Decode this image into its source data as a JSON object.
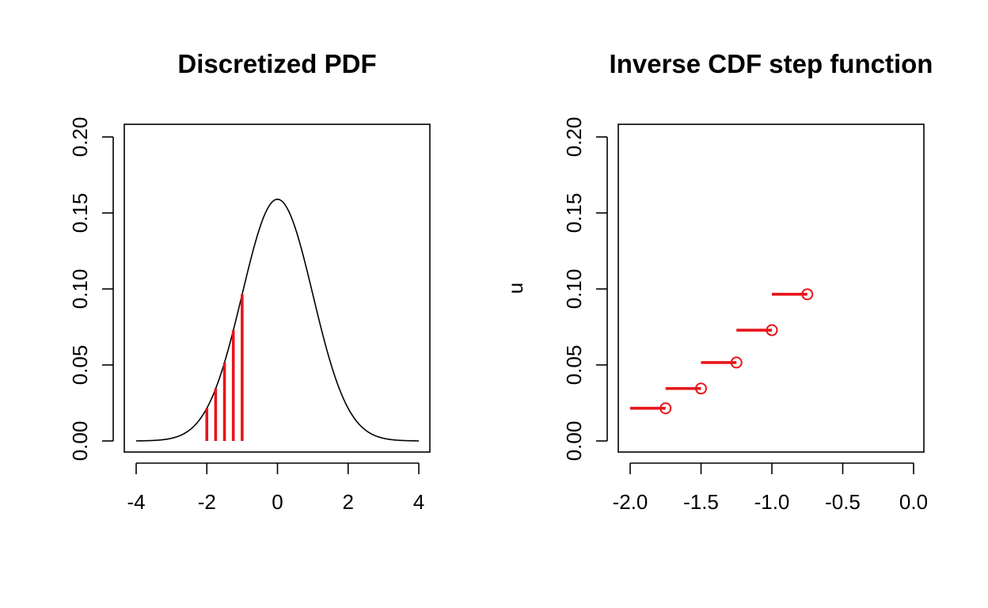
{
  "colors": {
    "accent": "#e8141a",
    "ink": "#000000",
    "background": "#ffffff"
  },
  "chart_data": [
    {
      "type": "line",
      "title": "Discretized PDF",
      "xlabel": "",
      "ylabel": "",
      "xlim": [
        -4,
        4
      ],
      "ylim": [
        0,
        0.2
      ],
      "xticks": [
        -4,
        -2,
        0,
        2,
        4
      ],
      "xtick_labels": [
        "-4",
        "-2",
        "0",
        "2",
        "4"
      ],
      "yticks": [
        0,
        0.05,
        0.1,
        0.15,
        0.2
      ],
      "ytick_labels": [
        "0.00",
        "0.05",
        "0.10",
        "0.15",
        "0.20"
      ],
      "grid": false,
      "legend": "none",
      "curve": {
        "description": "smooth density curve peaking at 0.159 at x = 0",
        "x_range": [
          -4,
          4
        ],
        "peak_value": 0.159
      },
      "vertical_segments": {
        "color": "#e8141a",
        "x": [
          -2.0,
          -1.75,
          -1.5,
          -1.25,
          -1.0
        ],
        "height": [
          0.0215,
          0.0345,
          0.0516,
          0.0729,
          0.0965
        ]
      }
    },
    {
      "type": "line",
      "title": "Inverse CDF step function",
      "xlabel": "",
      "ylabel": "u",
      "xlim": [
        -2.0,
        0.0
      ],
      "ylim": [
        0,
        0.2
      ],
      "xticks": [
        -2.0,
        -1.5,
        -1.0,
        -0.5,
        0.0
      ],
      "xtick_labels": [
        "-2.0",
        "-1.5",
        "-1.0",
        "-0.5",
        "0.0"
      ],
      "yticks": [
        0,
        0.05,
        0.1,
        0.15,
        0.2
      ],
      "ytick_labels": [
        "0.00",
        "0.05",
        "0.10",
        "0.15",
        "0.20"
      ],
      "grid": false,
      "legend": "none",
      "steps": {
        "color": "#e8141a",
        "x_start": [
          -2.0,
          -1.75,
          -1.5,
          -1.25,
          -1.0
        ],
        "x_end": [
          -1.75,
          -1.5,
          -1.25,
          -1.0,
          -0.75
        ],
        "u": [
          0.0215,
          0.0345,
          0.0516,
          0.0729,
          0.0965
        ],
        "open_circle_at": "x_end"
      }
    }
  ]
}
